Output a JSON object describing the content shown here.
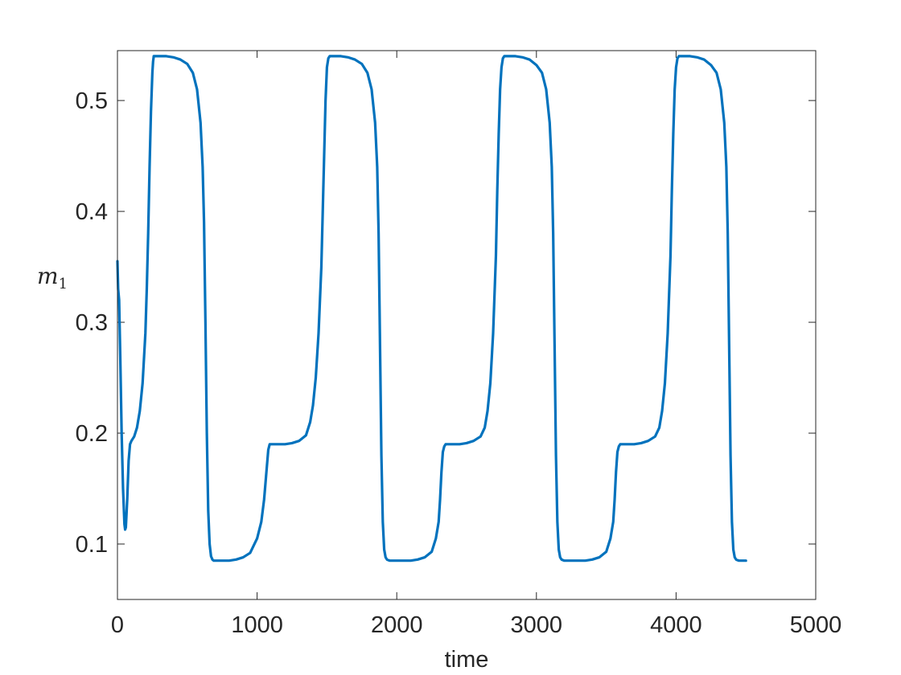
{
  "chart_data": {
    "type": "line",
    "xlabel": "time",
    "ylabel": "m",
    "ylabel_subscript": "1",
    "xlim": [
      0,
      5000
    ],
    "ylim": [
      0.05,
      0.545
    ],
    "xticks": [
      0,
      1000,
      2000,
      3000,
      4000,
      5000
    ],
    "xtick_labels": [
      "0",
      "1000",
      "2000",
      "3000",
      "4000",
      "5000"
    ],
    "yticks": [
      0.1,
      0.2,
      0.3,
      0.4,
      0.5
    ],
    "ytick_labels": [
      "0.1",
      "0.2",
      "0.3",
      "0.4",
      "0.5"
    ],
    "grid": false,
    "box": true,
    "series": [
      {
        "color": "#0072BD",
        "x": [
          0,
          5,
          12,
          20,
          30,
          40,
          50,
          55,
          60,
          70,
          80,
          90,
          100,
          120,
          140,
          160,
          180,
          200,
          210,
          220,
          230,
          240,
          250,
          255,
          260,
          300,
          350,
          400,
          450,
          500,
          540,
          570,
          595,
          610,
          620,
          630,
          640,
          650,
          660,
          670,
          680,
          690,
          700,
          750,
          800,
          850,
          900,
          950,
          1000,
          1030,
          1050,
          1060,
          1070,
          1080,
          1090,
          1100,
          1150,
          1200,
          1250,
          1300,
          1350,
          1380,
          1400,
          1420,
          1440,
          1460,
          1470,
          1480,
          1490,
          1500,
          1510,
          1520,
          1550,
          1600,
          1650,
          1700,
          1750,
          1790,
          1820,
          1845,
          1860,
          1870,
          1880,
          1890,
          1900,
          1910,
          1920,
          1930,
          1950,
          2000,
          2050,
          2100,
          2150,
          2200,
          2250,
          2280,
          2300,
          2310,
          2320,
          2330,
          2340,
          2350,
          2400,
          2450,
          2500,
          2550,
          2600,
          2630,
          2650,
          2670,
          2690,
          2710,
          2720,
          2730,
          2740,
          2750,
          2760,
          2770,
          2800,
          2850,
          2900,
          2950,
          3000,
          3040,
          3070,
          3095,
          3110,
          3120,
          3130,
          3140,
          3150,
          3160,
          3170,
          3180,
          3200,
          3250,
          3300,
          3350,
          3400,
          3450,
          3500,
          3530,
          3550,
          3560,
          3570,
          3580,
          3590,
          3600,
          3650,
          3700,
          3750,
          3800,
          3850,
          3880,
          3900,
          3920,
          3940,
          3960,
          3970,
          3980,
          3990,
          4000,
          4010,
          4020,
          4050,
          4100,
          4150,
          4200,
          4250,
          4290,
          4320,
          4345,
          4360,
          4370,
          4380,
          4390,
          4400,
          4410,
          4420,
          4430,
          4450,
          4500
        ],
        "y": [
          0.355,
          0.33,
          0.32,
          0.27,
          0.2,
          0.15,
          0.118,
          0.113,
          0.115,
          0.14,
          0.175,
          0.19,
          0.193,
          0.197,
          0.205,
          0.22,
          0.245,
          0.29,
          0.33,
          0.38,
          0.44,
          0.49,
          0.525,
          0.535,
          0.54,
          0.54,
          0.54,
          0.539,
          0.537,
          0.533,
          0.525,
          0.51,
          0.48,
          0.44,
          0.39,
          0.3,
          0.2,
          0.13,
          0.1,
          0.089,
          0.086,
          0.085,
          0.085,
          0.085,
          0.085,
          0.086,
          0.088,
          0.092,
          0.105,
          0.12,
          0.14,
          0.155,
          0.17,
          0.185,
          0.19,
          0.19,
          0.19,
          0.19,
          0.191,
          0.193,
          0.198,
          0.21,
          0.225,
          0.25,
          0.29,
          0.35,
          0.4,
          0.45,
          0.5,
          0.53,
          0.538,
          0.54,
          0.54,
          0.54,
          0.539,
          0.537,
          0.533,
          0.525,
          0.51,
          0.48,
          0.44,
          0.38,
          0.28,
          0.18,
          0.12,
          0.095,
          0.088,
          0.086,
          0.085,
          0.085,
          0.085,
          0.085,
          0.086,
          0.088,
          0.093,
          0.105,
          0.12,
          0.14,
          0.165,
          0.183,
          0.188,
          0.19,
          0.19,
          0.19,
          0.191,
          0.193,
          0.197,
          0.205,
          0.22,
          0.245,
          0.29,
          0.36,
          0.42,
          0.47,
          0.51,
          0.53,
          0.538,
          0.54,
          0.54,
          0.54,
          0.539,
          0.537,
          0.532,
          0.525,
          0.51,
          0.48,
          0.44,
          0.38,
          0.28,
          0.18,
          0.12,
          0.095,
          0.088,
          0.086,
          0.085,
          0.085,
          0.085,
          0.085,
          0.086,
          0.088,
          0.093,
          0.105,
          0.12,
          0.14,
          0.165,
          0.183,
          0.188,
          0.19,
          0.19,
          0.19,
          0.191,
          0.193,
          0.197,
          0.205,
          0.22,
          0.245,
          0.29,
          0.36,
          0.42,
          0.47,
          0.51,
          0.53,
          0.538,
          0.54,
          0.54,
          0.54,
          0.539,
          0.537,
          0.532,
          0.525,
          0.51,
          0.48,
          0.44,
          0.38,
          0.28,
          0.18,
          0.12,
          0.095,
          0.088,
          0.086,
          0.085,
          0.085
        ]
      }
    ]
  }
}
